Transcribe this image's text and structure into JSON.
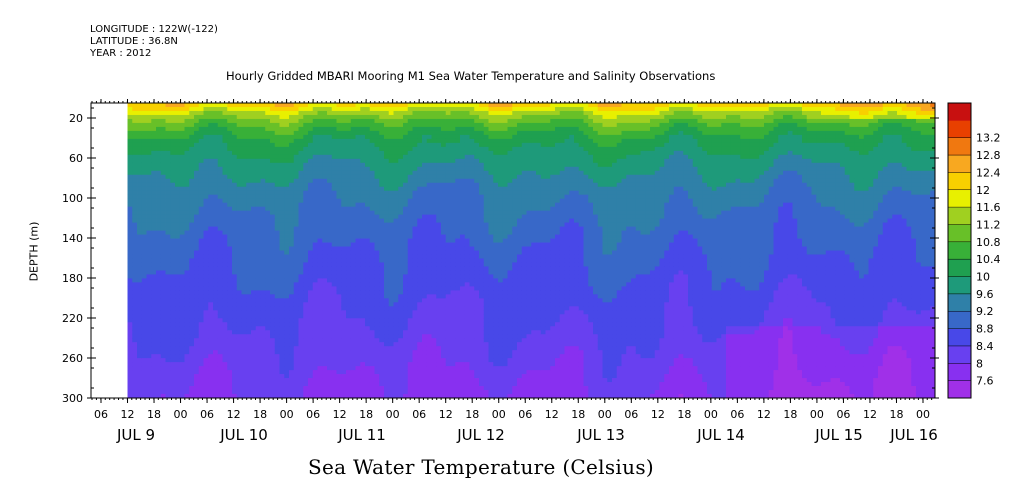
{
  "header": {
    "longitude": "LONGITUDE : 122W(-122)",
    "latitude": "LATITUDE : 36.8N",
    "year": "YEAR : 2012"
  },
  "chart_data": {
    "type": "heatmap",
    "title": "Hourly Gridded MBARI Mooring M1 Sea Water Temperature and Salinity Observations",
    "caption": "Sea Water Temperature (Celsius)",
    "ylabel": "DEPTH (m)",
    "xlabel": "",
    "y_ticks": [
      20,
      60,
      100,
      140,
      180,
      220,
      260,
      300
    ],
    "ylim": [
      300,
      5
    ],
    "x_hour_ticks": [
      "06",
      "12",
      "18",
      "00",
      "06",
      "12",
      "18",
      "00",
      "06",
      "12",
      "18",
      "00",
      "06",
      "12",
      "18",
      "00",
      "06",
      "12",
      "18",
      "00",
      "06",
      "12",
      "18",
      "00",
      "06",
      "12",
      "18",
      "00",
      "06",
      "12",
      "18",
      "00"
    ],
    "x_day_labels": [
      "JUL  9",
      "JUL 10",
      "JUL 11",
      "JUL 12",
      "JUL 13",
      "JUL 14",
      "JUL 15",
      "JUL 16"
    ],
    "data_start": "JUL 9 12:00",
    "colorbar_levels": [
      7.6,
      8,
      8.4,
      8.8,
      9.2,
      9.6,
      10,
      10.4,
      10.8,
      11.2,
      11.6,
      12,
      12.4,
      12.8,
      13.2
    ],
    "colorbar_colors": [
      "#a030e8",
      "#8830f0",
      "#6840f0",
      "#4848e8",
      "#3868c8",
      "#2f80a8",
      "#1e9a7a",
      "#1fa050",
      "#38b038",
      "#68c028",
      "#a0d020",
      "#e8f000",
      "#f8d000",
      "#f8a820",
      "#f07810",
      "#e84000",
      "#c81010"
    ],
    "depth_profile": [
      {
        "depth": 8,
        "temp": 12.0
      },
      {
        "depth": 15,
        "temp": 11.4
      },
      {
        "depth": 25,
        "temp": 10.8
      },
      {
        "depth": 40,
        "temp": 10.2
      },
      {
        "depth": 60,
        "temp": 9.8
      },
      {
        "depth": 80,
        "temp": 9.5
      },
      {
        "depth": 100,
        "temp": 9.25
      },
      {
        "depth": 130,
        "temp": 9.0
      },
      {
        "depth": 160,
        "temp": 8.8
      },
      {
        "depth": 200,
        "temp": 8.55
      },
      {
        "depth": 240,
        "temp": 8.3
      },
      {
        "depth": 270,
        "temp": 8.1
      },
      {
        "depth": 300,
        "temp": 7.9
      }
    ],
    "grid": false,
    "legend": "right colorbar"
  }
}
